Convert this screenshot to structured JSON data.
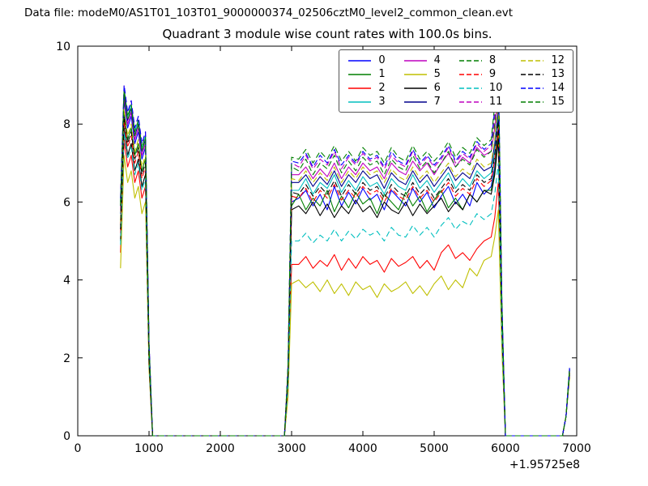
{
  "figure": {
    "background": "#ffffff",
    "data_file_label": "Data file: modeM0/AS1T01_103T01_9000000374_02506cztM0_level2_common_clean.evt"
  },
  "chart_data": {
    "type": "line",
    "title": "Quadrant 3 module wise count rates with 100.0s bins.",
    "xlabel": "",
    "ylabel": "",
    "x_axis_offset_label": "+1.95725e8",
    "xlim": [
      0,
      7000
    ],
    "ylim": [
      0,
      10
    ],
    "xticks": [
      0,
      1000,
      2000,
      3000,
      4000,
      5000,
      6000,
      7000
    ],
    "yticks": [
      0,
      2,
      4,
      6,
      8,
      10
    ],
    "grid": false,
    "bin_width_seconds": 100.0,
    "legend": {
      "position": "upper-right",
      "columns": 4
    },
    "x": [
      600,
      650,
      700,
      750,
      800,
      850,
      900,
      950,
      1000,
      1050,
      1100,
      1500,
      2000,
      2500,
      2850,
      2900,
      2950,
      3000,
      3100,
      3200,
      3300,
      3400,
      3500,
      3600,
      3700,
      3800,
      3900,
      4000,
      4100,
      4200,
      4300,
      4400,
      4500,
      4600,
      4700,
      4800,
      4900,
      5000,
      5100,
      5200,
      5300,
      5400,
      5500,
      5600,
      5700,
      5800,
      5850,
      5900,
      5950,
      6000,
      6100,
      6500,
      6800,
      6850,
      6900
    ],
    "series": [
      {
        "name": "0",
        "color": "#0000ff",
        "style": "solid",
        "values": [
          5.7,
          8.6,
          7.9,
          8.2,
          7.5,
          7.8,
          7.1,
          7.4,
          2.2,
          0,
          0,
          0,
          0,
          0,
          0,
          0,
          1.5,
          6.0,
          6.1,
          6.3,
          5.9,
          6.2,
          5.8,
          6.4,
          5.9,
          6.25,
          5.95,
          6.35,
          6.05,
          6.2,
          5.8,
          6.3,
          6.1,
          5.9,
          6.35,
          6.0,
          6.25,
          5.85,
          6.15,
          6.4,
          5.95,
          6.2,
          5.9,
          6.5,
          6.2,
          6.4,
          6.9,
          8.0,
          3.0,
          0,
          0,
          0,
          0,
          0.5,
          1.65
        ]
      },
      {
        "name": "1",
        "color": "#007f00",
        "style": "solid",
        "values": [
          5.4,
          8.3,
          7.6,
          7.9,
          7.2,
          7.5,
          6.8,
          7.1,
          2.0,
          0,
          0,
          0,
          0,
          0,
          0,
          0,
          1.5,
          5.9,
          6.2,
          5.8,
          6.1,
          5.9,
          6.3,
          5.75,
          6.15,
          5.85,
          6.25,
          5.95,
          6.1,
          5.7,
          6.2,
          6.0,
          5.8,
          6.25,
          5.9,
          6.15,
          5.75,
          6.05,
          6.3,
          5.85,
          6.1,
          5.8,
          6.2,
          6.0,
          6.3,
          6.3,
          6.8,
          7.8,
          2.9,
          0,
          0,
          0,
          0,
          0.5,
          1.6
        ]
      },
      {
        "name": "2",
        "color": "#ff0000",
        "style": "solid",
        "values": [
          4.7,
          7.6,
          6.9,
          7.2,
          6.5,
          6.8,
          6.1,
          6.4,
          1.8,
          0,
          0,
          0,
          0,
          0,
          0,
          0,
          1.1,
          4.4,
          4.4,
          4.6,
          4.3,
          4.5,
          4.35,
          4.65,
          4.25,
          4.55,
          4.3,
          4.6,
          4.4,
          4.5,
          4.2,
          4.55,
          4.35,
          4.45,
          4.6,
          4.3,
          4.5,
          4.25,
          4.7,
          4.9,
          4.55,
          4.7,
          4.5,
          4.8,
          5.0,
          5.1,
          5.6,
          6.5,
          2.4,
          0,
          0,
          0,
          0,
          0.5,
          1.55
        ]
      },
      {
        "name": "3",
        "color": "#00bfbf",
        "style": "solid",
        "values": [
          6.0,
          8.9,
          8.2,
          8.5,
          7.8,
          8.1,
          7.4,
          7.7,
          2.3,
          0,
          0,
          0,
          0,
          0,
          0,
          0,
          1.6,
          6.3,
          6.3,
          6.6,
          6.2,
          6.5,
          6.35,
          6.7,
          6.25,
          6.55,
          6.3,
          6.65,
          6.4,
          6.5,
          6.2,
          6.6,
          6.4,
          6.3,
          6.7,
          6.35,
          6.55,
          6.25,
          6.5,
          6.75,
          6.35,
          6.6,
          6.4,
          6.8,
          6.6,
          6.75,
          7.3,
          8.3,
          3.1,
          0,
          0,
          0,
          0,
          0.5,
          1.7
        ]
      },
      {
        "name": "4",
        "color": "#bf00bf",
        "style": "solid",
        "values": [
          5.8,
          8.7,
          8.0,
          8.3,
          7.6,
          7.9,
          7.2,
          7.5,
          2.2,
          0,
          0,
          0,
          0,
          0,
          0,
          0,
          1.7,
          6.7,
          6.7,
          6.9,
          6.6,
          6.85,
          6.65,
          7.0,
          6.6,
          6.9,
          6.7,
          7.0,
          6.8,
          6.9,
          6.6,
          7.0,
          6.8,
          6.7,
          7.05,
          6.8,
          7.0,
          6.7,
          7.0,
          7.25,
          6.9,
          7.15,
          7.0,
          7.4,
          7.2,
          7.3,
          7.9,
          8.8,
          3.3,
          0,
          0,
          0,
          0,
          0.5,
          1.7
        ]
      },
      {
        "name": "5",
        "color": "#bfbf00",
        "style": "solid",
        "values": [
          4.3,
          7.2,
          6.5,
          6.8,
          6.1,
          6.4,
          5.7,
          6.0,
          1.7,
          0,
          0,
          0,
          0,
          0,
          0,
          0,
          1.0,
          3.9,
          4.0,
          3.8,
          3.95,
          3.7,
          4.0,
          3.65,
          3.9,
          3.6,
          3.95,
          3.75,
          3.85,
          3.55,
          3.9,
          3.7,
          3.8,
          3.95,
          3.65,
          3.85,
          3.6,
          3.9,
          4.1,
          3.75,
          4.0,
          3.8,
          4.3,
          4.1,
          4.5,
          4.6,
          5.1,
          5.8,
          2.2,
          0,
          0,
          0,
          0,
          0.5,
          1.5
        ]
      },
      {
        "name": "6",
        "color": "#000000",
        "style": "solid",
        "values": [
          5.0,
          7.9,
          7.2,
          7.5,
          6.8,
          7.1,
          6.4,
          6.7,
          1.9,
          0,
          0,
          0,
          0,
          0,
          0,
          0,
          1.5,
          5.8,
          5.9,
          5.7,
          6.0,
          5.65,
          5.95,
          5.6,
          5.9,
          5.7,
          6.05,
          5.75,
          5.9,
          5.6,
          6.0,
          5.8,
          5.7,
          6.0,
          5.65,
          5.95,
          5.7,
          5.9,
          6.1,
          5.75,
          6.0,
          5.8,
          6.2,
          6.0,
          6.3,
          6.2,
          6.7,
          7.6,
          2.8,
          0,
          0,
          0,
          0,
          0.5,
          1.6
        ]
      },
      {
        "name": "7",
        "color": "#00008b",
        "style": "solid",
        "values": [
          5.9,
          8.8,
          8.1,
          8.4,
          7.7,
          8.0,
          7.3,
          7.6,
          2.3,
          0,
          0,
          0,
          0,
          0,
          0,
          0,
          1.6,
          6.5,
          6.5,
          6.7,
          6.4,
          6.65,
          6.45,
          6.8,
          6.4,
          6.7,
          6.5,
          6.8,
          6.6,
          6.7,
          6.35,
          6.75,
          6.55,
          6.45,
          6.8,
          6.5,
          6.7,
          6.4,
          6.65,
          6.9,
          6.55,
          6.75,
          6.6,
          7.0,
          6.8,
          6.9,
          7.5,
          8.4,
          3.1,
          0,
          0,
          0,
          0,
          0.5,
          1.7
        ]
      },
      {
        "name": "8",
        "color": "#007f00",
        "style": "dashed",
        "values": [
          6.0,
          8.9,
          8.2,
          8.5,
          7.8,
          8.1,
          7.4,
          7.7,
          2.4,
          0,
          0,
          0,
          0,
          0,
          0,
          0,
          1.7,
          6.9,
          6.8,
          7.1,
          6.7,
          7.0,
          6.85,
          7.2,
          6.75,
          7.05,
          6.8,
          7.15,
          6.95,
          7.05,
          6.7,
          7.1,
          6.9,
          6.8,
          7.2,
          6.85,
          7.05,
          6.75,
          7.0,
          7.3,
          6.9,
          7.1,
          6.95,
          7.35,
          7.15,
          7.3,
          8.0,
          9.0,
          3.3,
          0,
          0,
          0,
          0,
          0.5,
          1.72
        ]
      },
      {
        "name": "9",
        "color": "#ff0000",
        "style": "dashed",
        "values": [
          5.2,
          8.1,
          7.4,
          7.7,
          7.0,
          7.3,
          6.6,
          6.9,
          2.0,
          0,
          0,
          0,
          0,
          0,
          0,
          0,
          1.6,
          6.15,
          6.1,
          6.35,
          6.0,
          6.3,
          6.1,
          6.45,
          6.05,
          6.3,
          6.1,
          6.4,
          6.2,
          6.3,
          6.0,
          6.35,
          6.15,
          6.05,
          6.4,
          6.1,
          6.3,
          6.0,
          6.25,
          6.5,
          6.15,
          6.35,
          6.2,
          6.6,
          6.4,
          6.55,
          7.1,
          7.9,
          2.9,
          0,
          0,
          0,
          0,
          0.5,
          1.62
        ]
      },
      {
        "name": "10",
        "color": "#00bfbf",
        "style": "dashed",
        "values": [
          4.9,
          7.8,
          7.1,
          7.4,
          6.7,
          7.0,
          6.3,
          6.6,
          1.9,
          0,
          0,
          0,
          0,
          0,
          0,
          0,
          1.3,
          5.0,
          5.0,
          5.2,
          4.95,
          5.15,
          5.0,
          5.3,
          5.0,
          5.25,
          5.05,
          5.3,
          5.15,
          5.25,
          5.0,
          5.35,
          5.15,
          5.1,
          5.4,
          5.15,
          5.35,
          5.1,
          5.4,
          5.6,
          5.3,
          5.5,
          5.4,
          5.7,
          5.55,
          5.7,
          6.2,
          7.0,
          2.6,
          0,
          0,
          0,
          0,
          0.5,
          1.58
        ]
      },
      {
        "name": "11",
        "color": "#bf00bf",
        "style": "dashed",
        "values": [
          6.1,
          9.0,
          8.3,
          8.6,
          7.9,
          8.2,
          7.5,
          7.8,
          2.4,
          0,
          0,
          0,
          0,
          0,
          0,
          0,
          1.8,
          7.0,
          6.9,
          7.2,
          6.85,
          7.1,
          6.95,
          7.3,
          6.85,
          7.15,
          6.95,
          7.25,
          7.05,
          7.15,
          6.85,
          7.2,
          7.0,
          6.9,
          7.3,
          6.95,
          7.15,
          6.9,
          7.1,
          7.4,
          7.0,
          7.25,
          7.1,
          7.5,
          7.3,
          7.45,
          8.2,
          9.3,
          3.4,
          0,
          0,
          0,
          0,
          0.5,
          1.73
        ]
      },
      {
        "name": "12",
        "color": "#bfbf00",
        "style": "dashed",
        "values": [
          5.5,
          8.4,
          7.7,
          8.0,
          7.3,
          7.6,
          6.9,
          7.2,
          2.1,
          0,
          0,
          0,
          0,
          0,
          0,
          0,
          1.7,
          6.6,
          6.55,
          6.8,
          6.5,
          6.75,
          6.55,
          6.9,
          6.5,
          6.8,
          6.6,
          6.9,
          6.7,
          6.8,
          6.5,
          6.85,
          6.65,
          6.55,
          6.9,
          6.6,
          6.8,
          6.5,
          6.75,
          7.0,
          6.65,
          6.85,
          6.7,
          7.1,
          6.9,
          7.0,
          7.6,
          8.6,
          3.2,
          0,
          0,
          0,
          0,
          0.5,
          1.68
        ]
      },
      {
        "name": "13",
        "color": "#000000",
        "style": "dashed",
        "values": [
          5.3,
          8.2,
          7.5,
          7.8,
          7.1,
          7.4,
          6.7,
          7.0,
          2.0,
          0,
          0,
          0,
          0,
          0,
          0,
          0,
          1.6,
          6.25,
          6.2,
          6.45,
          6.15,
          6.4,
          6.2,
          6.55,
          6.15,
          6.45,
          6.2,
          6.5,
          6.3,
          6.4,
          6.1,
          6.45,
          6.25,
          6.15,
          6.5,
          6.2,
          6.4,
          6.1,
          6.35,
          6.6,
          6.25,
          6.45,
          6.3,
          6.7,
          6.5,
          6.6,
          7.2,
          8.1,
          3.0,
          0,
          0,
          0,
          0,
          0.5,
          1.63
        ]
      },
      {
        "name": "14",
        "color": "#0000ff",
        "style": "dashed",
        "values": [
          6.1,
          9.0,
          8.3,
          8.6,
          7.9,
          8.2,
          7.5,
          7.8,
          2.4,
          0,
          0,
          0,
          0,
          0,
          0,
          0,
          1.8,
          7.05,
          7.0,
          7.25,
          6.9,
          7.2,
          7.0,
          7.35,
          6.95,
          7.2,
          7.0,
          7.3,
          7.1,
          7.2,
          6.9,
          7.3,
          7.05,
          6.95,
          7.35,
          7.0,
          7.2,
          6.95,
          7.15,
          7.45,
          7.05,
          7.3,
          7.15,
          7.55,
          7.35,
          7.5,
          8.4,
          9.6,
          3.5,
          0,
          0,
          0,
          0,
          0.5,
          1.75
        ]
      },
      {
        "name": "15",
        "color": "#007f00",
        "style": "dashed",
        "values": [
          5.9,
          8.8,
          8.1,
          8.4,
          7.7,
          8.0,
          7.3,
          7.6,
          2.3,
          0,
          0,
          0,
          0,
          0,
          0,
          0,
          1.8,
          7.15,
          7.1,
          7.35,
          7.0,
          7.3,
          7.1,
          7.45,
          7.05,
          7.3,
          7.05,
          7.4,
          7.2,
          7.3,
          7.0,
          7.4,
          7.15,
          7.05,
          7.45,
          7.1,
          7.3,
          7.05,
          7.25,
          7.55,
          7.15,
          7.4,
          7.25,
          7.65,
          7.45,
          7.6,
          8.5,
          9.7,
          3.5,
          0,
          0,
          0,
          0,
          0.5,
          1.74
        ]
      }
    ]
  }
}
